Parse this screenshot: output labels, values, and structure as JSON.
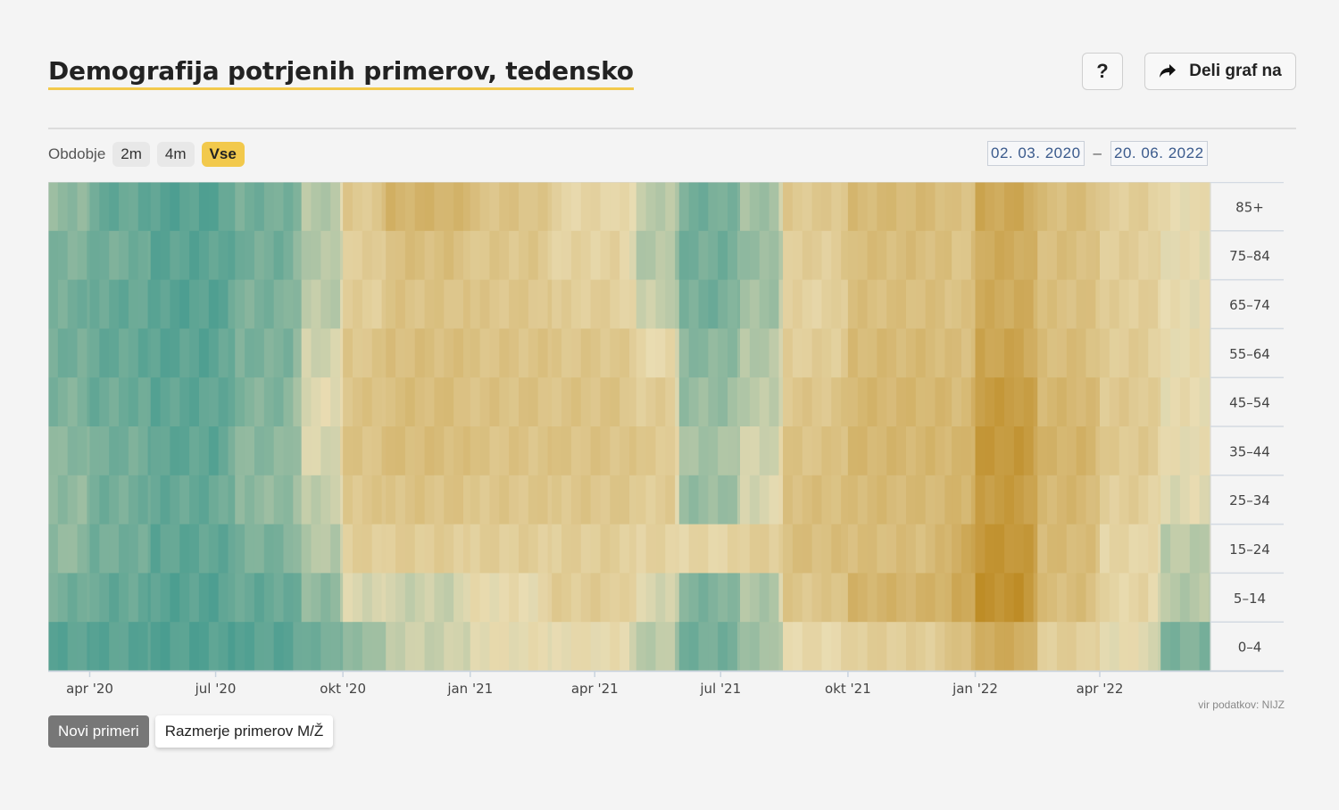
{
  "title": "Demografija potrjenih primerov, tedensko",
  "help_label": "?",
  "share_label": "Deli graf na",
  "period": {
    "label": "Obdobje",
    "options": [
      "2m",
      "4m",
      "Vse"
    ],
    "active": "Vse"
  },
  "date_range": {
    "from": "02. 03. 2020",
    "separator": "–",
    "to": "20. 06. 2022"
  },
  "source_note": "vir podatkov: NIJZ",
  "toggle_buttons": [
    {
      "label": "Novi primeri",
      "active": true
    },
    {
      "label": "Razmerje primerov M/Ž",
      "active": false
    }
  ],
  "colors": {
    "accent": "#f2c94c",
    "low": "#4a9d90",
    "mid": "#e9dcb2",
    "high": "#bd8a22"
  },
  "chart_data": {
    "type": "heatmap",
    "title": "",
    "x_range": [
      "2020-03-02",
      "2022-06-20"
    ],
    "x_ticks": [
      {
        "label": "apr '20",
        "date": "2020-04-01"
      },
      {
        "label": "jul '20",
        "date": "2020-07-01"
      },
      {
        "label": "okt '20",
        "date": "2020-10-01"
      },
      {
        "label": "jan '21",
        "date": "2021-01-01"
      },
      {
        "label": "apr '21",
        "date": "2021-04-01"
      },
      {
        "label": "jul '21",
        "date": "2021-07-01"
      },
      {
        "label": "okt '21",
        "date": "2021-10-01"
      },
      {
        "label": "jan '22",
        "date": "2022-01-01"
      },
      {
        "label": "apr '22",
        "date": "2022-04-01"
      }
    ],
    "age_groups": [
      "85+",
      "75–84",
      "65–74",
      "55–64",
      "45–54",
      "35–44",
      "25–34",
      "15–24",
      "5–14",
      "0–4"
    ],
    "color_scale": "teal (low) to gold (high)",
    "segments": [
      {
        "start": "2020-03-02",
        "end": "2020-04-01",
        "levels": [
          0.2,
          0.15,
          0.12,
          0.12,
          0.15,
          0.18,
          0.2,
          0.2,
          0.12,
          0.05
        ]
      },
      {
        "start": "2020-04-01",
        "end": "2020-05-15",
        "levels": [
          0.08,
          0.12,
          0.08,
          0.08,
          0.1,
          0.12,
          0.12,
          0.12,
          0.08,
          0.05
        ]
      },
      {
        "start": "2020-05-15",
        "end": "2020-07-15",
        "levels": [
          0.04,
          0.05,
          0.04,
          0.05,
          0.06,
          0.06,
          0.08,
          0.06,
          0.04,
          0.03
        ]
      },
      {
        "start": "2020-07-15",
        "end": "2020-09-01",
        "levels": [
          0.12,
          0.12,
          0.14,
          0.14,
          0.16,
          0.18,
          0.2,
          0.14,
          0.08,
          0.05
        ]
      },
      {
        "start": "2020-09-01",
        "end": "2020-10-01",
        "levels": [
          0.3,
          0.3,
          0.32,
          0.38,
          0.42,
          0.4,
          0.34,
          0.3,
          0.2,
          0.12
        ]
      },
      {
        "start": "2020-10-01",
        "end": "2020-11-01",
        "levels": [
          0.58,
          0.55,
          0.55,
          0.6,
          0.62,
          0.62,
          0.6,
          0.55,
          0.4,
          0.22
        ]
      },
      {
        "start": "2020-11-01",
        "end": "2021-01-01",
        "levels": [
          0.72,
          0.65,
          0.62,
          0.65,
          0.66,
          0.66,
          0.62,
          0.56,
          0.36,
          0.36
        ]
      },
      {
        "start": "2021-01-01",
        "end": "2021-03-01",
        "levels": [
          0.62,
          0.6,
          0.6,
          0.62,
          0.63,
          0.62,
          0.6,
          0.55,
          0.46,
          0.45
        ]
      },
      {
        "start": "2021-03-01",
        "end": "2021-05-01",
        "levels": [
          0.5,
          0.52,
          0.55,
          0.6,
          0.62,
          0.62,
          0.6,
          0.55,
          0.56,
          0.46
        ]
      },
      {
        "start": "2021-05-01",
        "end": "2021-06-01",
        "levels": [
          0.32,
          0.3,
          0.35,
          0.48,
          0.56,
          0.58,
          0.56,
          0.52,
          0.4,
          0.32
        ]
      },
      {
        "start": "2021-06-01",
        "end": "2021-07-15",
        "levels": [
          0.12,
          0.12,
          0.12,
          0.18,
          0.22,
          0.26,
          0.22,
          0.5,
          0.15,
          0.12
        ]
      },
      {
        "start": "2021-07-15",
        "end": "2021-08-15",
        "levels": [
          0.25,
          0.22,
          0.25,
          0.3,
          0.32,
          0.38,
          0.4,
          0.55,
          0.28,
          0.25
        ]
      },
      {
        "start": "2021-08-15",
        "end": "2021-10-01",
        "levels": [
          0.58,
          0.55,
          0.52,
          0.55,
          0.6,
          0.62,
          0.65,
          0.65,
          0.6,
          0.48
        ]
      },
      {
        "start": "2021-10-01",
        "end": "2021-12-15",
        "levels": [
          0.68,
          0.66,
          0.65,
          0.68,
          0.7,
          0.7,
          0.68,
          0.66,
          0.72,
          0.55
        ]
      },
      {
        "start": "2021-12-15",
        "end": "2022-01-01",
        "levels": [
          0.62,
          0.62,
          0.62,
          0.65,
          0.68,
          0.7,
          0.72,
          0.78,
          0.78,
          0.66
        ]
      },
      {
        "start": "2022-01-01",
        "end": "2022-02-15",
        "levels": [
          0.8,
          0.78,
          0.78,
          0.82,
          0.88,
          0.9,
          0.88,
          0.92,
          0.95,
          0.78
        ]
      },
      {
        "start": "2022-02-15",
        "end": "2022-04-01",
        "levels": [
          0.66,
          0.65,
          0.64,
          0.66,
          0.7,
          0.72,
          0.7,
          0.68,
          0.66,
          0.55
        ]
      },
      {
        "start": "2022-04-01",
        "end": "2022-05-15",
        "levels": [
          0.55,
          0.55,
          0.55,
          0.56,
          0.58,
          0.58,
          0.55,
          0.5,
          0.5,
          0.45
        ]
      },
      {
        "start": "2022-05-15",
        "end": "2022-06-20",
        "levels": [
          0.46,
          0.45,
          0.45,
          0.46,
          0.46,
          0.45,
          0.42,
          0.32,
          0.3,
          0.15
        ]
      }
    ]
  }
}
